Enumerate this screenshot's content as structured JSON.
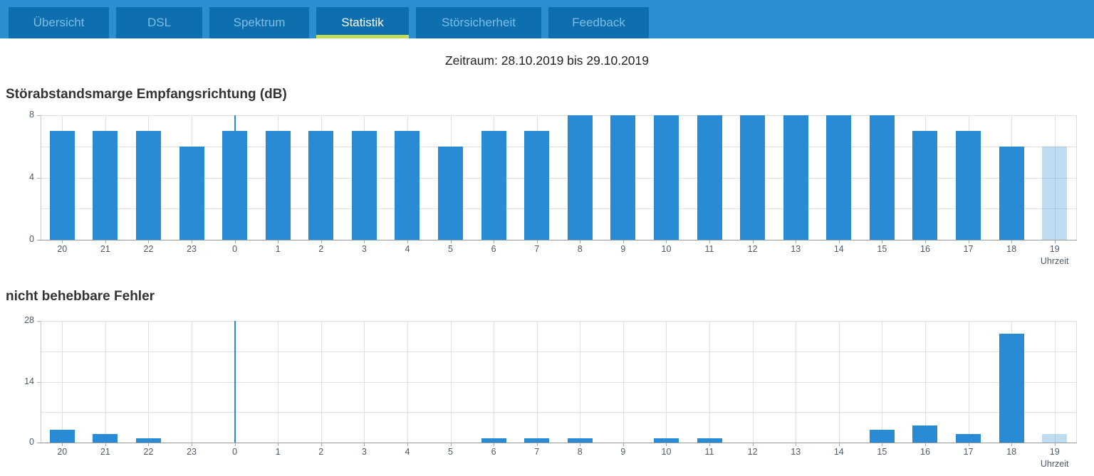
{
  "tab_bar": {
    "tabs": [
      {
        "label": "Übersicht",
        "active": false
      },
      {
        "label": "DSL",
        "active": false
      },
      {
        "label": "Spektrum",
        "active": false
      },
      {
        "label": "Statistik",
        "active": true
      },
      {
        "label": "Störsicherheit",
        "active": false
      },
      {
        "label": "Feedback",
        "active": false
      }
    ]
  },
  "period_label": "Zeitraum: 28.10.2019 bis 29.10.2019",
  "chart_data": [
    {
      "type": "bar",
      "title": "Störabstandsmarge Empfangsrichtung (dB)",
      "xlabel": "Uhrzeit",
      "categories": [
        "20",
        "21",
        "22",
        "23",
        "0",
        "1",
        "2",
        "3",
        "4",
        "5",
        "6",
        "7",
        "8",
        "9",
        "10",
        "11",
        "12",
        "13",
        "14",
        "15",
        "16",
        "17",
        "18",
        "19"
      ],
      "values": [
        7,
        7,
        7,
        6,
        7,
        7,
        7,
        7,
        7,
        6,
        7,
        7,
        8,
        8,
        8,
        8,
        8,
        8,
        8,
        8,
        7,
        7,
        6,
        6
      ],
      "ylim": [
        0,
        8
      ],
      "ytick_labels": [
        0,
        4,
        8
      ],
      "grid_values": [
        2,
        4,
        6,
        8
      ],
      "grid": "on",
      "legend": "none",
      "current_hour_index": 23,
      "midnight_marker_index": 4
    },
    {
      "type": "bar",
      "title": "nicht behebbare Fehler",
      "xlabel": "Uhrzeit",
      "categories": [
        "20",
        "21",
        "22",
        "23",
        "0",
        "1",
        "2",
        "3",
        "4",
        "5",
        "6",
        "7",
        "8",
        "9",
        "10",
        "11",
        "12",
        "13",
        "14",
        "15",
        "16",
        "17",
        "18",
        "19"
      ],
      "values": [
        3,
        2,
        1,
        0,
        0,
        0,
        0,
        0,
        0,
        0,
        1,
        1,
        1,
        0,
        1,
        1,
        0,
        0,
        0,
        3,
        4,
        2,
        25,
        2
      ],
      "ylim": [
        0,
        28
      ],
      "ytick_labels": [
        0,
        14,
        28
      ],
      "grid_values": [
        7,
        14,
        21,
        28
      ],
      "grid": "on",
      "legend": "none",
      "current_hour_index": 23,
      "midnight_marker_index": 4
    }
  ],
  "colors": {
    "bar": "#2a8bd5",
    "bar_current": "rgba(42,139,213,0.30)",
    "tab_strip": "#2a90d1",
    "tab_background": "#0e6fae",
    "tab_text_inactive": "#7fbce3",
    "tab_text_active": "#ffffff",
    "active_tab_underline": "#c3d95c",
    "gridline": "#e1e1e1",
    "axis_label": "#4d5a66"
  }
}
